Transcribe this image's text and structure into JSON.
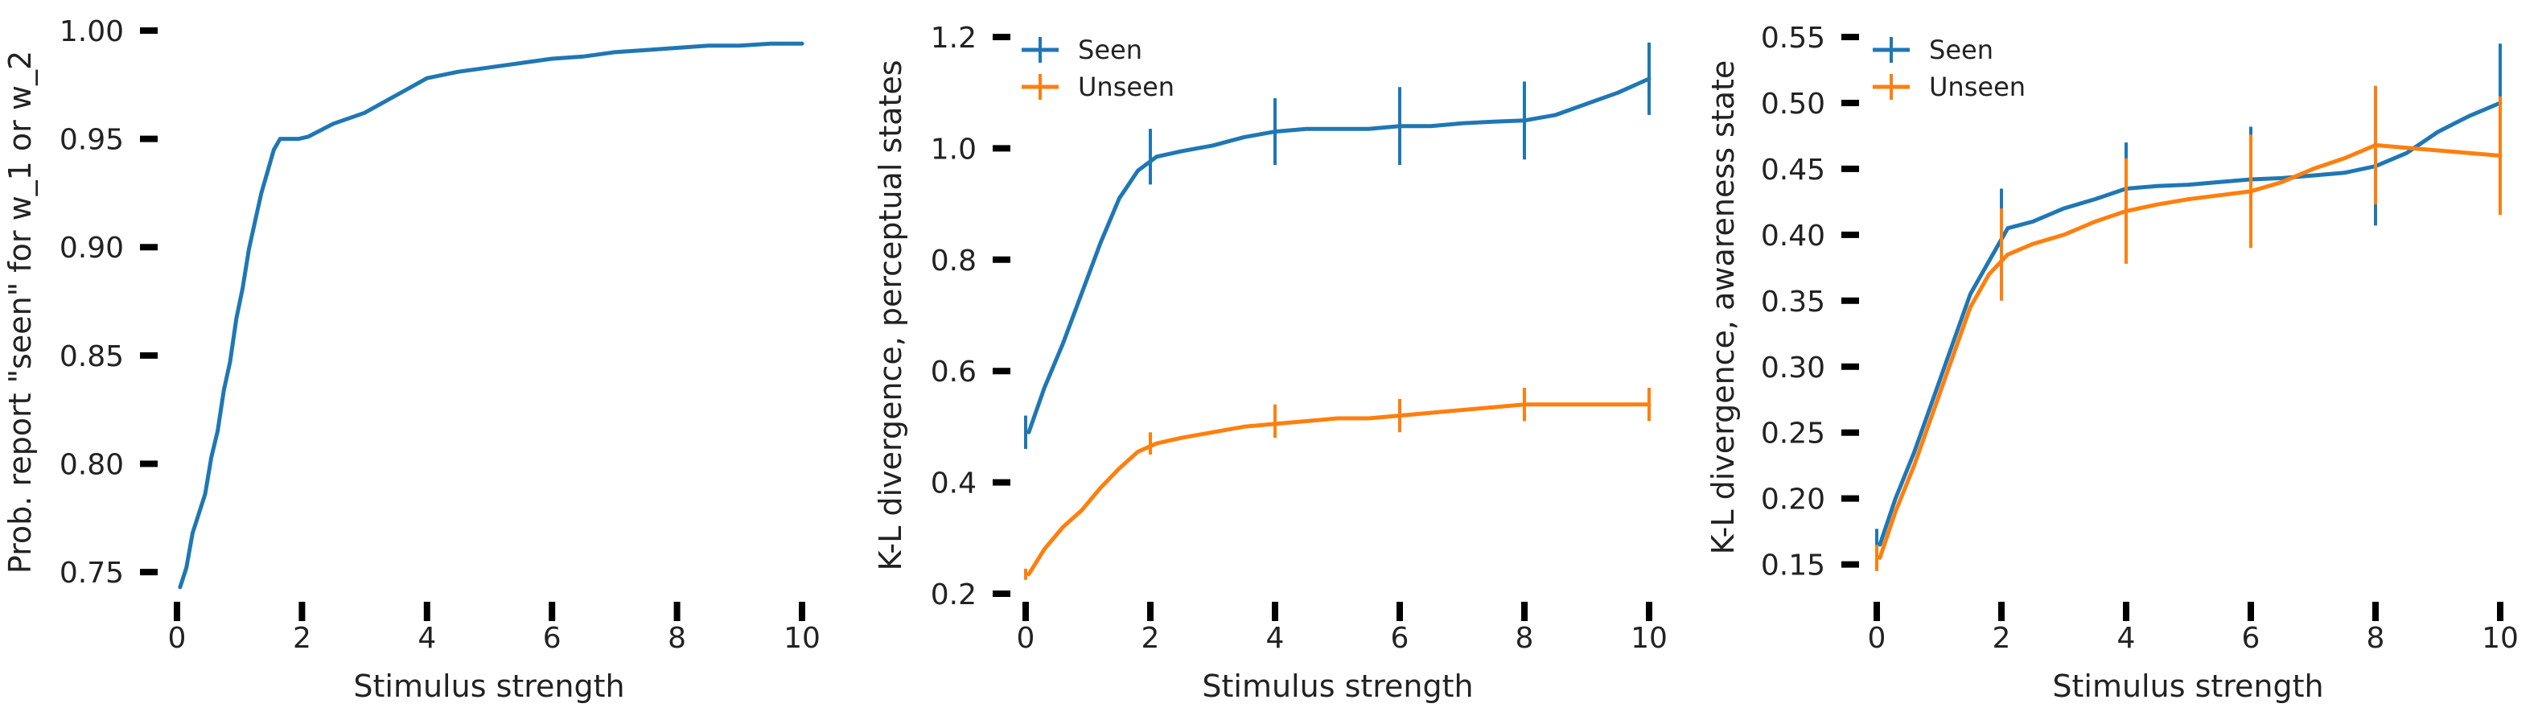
{
  "figure": {
    "colors": {
      "seen": "#1f77b4",
      "unseen": "#ff7f0e"
    }
  },
  "chart_data": [
    {
      "type": "line",
      "title": "",
      "xlabel": "Stimulus strength",
      "ylabel": "Prob. report \"seen\" for w_1 or w_2",
      "xlim": [
        0,
        10
      ],
      "ylim": [
        0.74,
        1.0
      ],
      "xticks": [
        "0",
        "2",
        "4",
        "6",
        "8",
        "10"
      ],
      "yticks": [
        "0.75",
        "0.80",
        "0.85",
        "0.90",
        "0.95",
        "1.00"
      ],
      "grid": false,
      "legend": null,
      "series": [
        {
          "color": "#1f77b4",
          "x": [
            0.05,
            0.15,
            0.25,
            0.35,
            0.45,
            0.55,
            0.65,
            0.75,
            0.85,
            0.95,
            1.05,
            1.15,
            1.25,
            1.35,
            1.45,
            1.55,
            1.65,
            1.75,
            1.85,
            1.95,
            2.1,
            2.5,
            3.0,
            3.5,
            4.0,
            4.5,
            5.0,
            5.5,
            6.0,
            6.5,
            7.0,
            7.5,
            8.0,
            8.5,
            9.0,
            9.5,
            10.0
          ],
          "y": [
            0.743,
            0.752,
            0.768,
            0.777,
            0.786,
            0.803,
            0.815,
            0.834,
            0.847,
            0.867,
            0.881,
            0.899,
            0.912,
            0.925,
            0.935,
            0.945,
            0.95,
            0.95,
            0.95,
            0.95,
            0.951,
            0.957,
            0.962,
            0.97,
            0.978,
            0.981,
            0.983,
            0.985,
            0.987,
            0.988,
            0.99,
            0.991,
            0.992,
            0.993,
            0.993,
            0.994,
            0.994
          ]
        }
      ]
    },
    {
      "type": "line",
      "title": "",
      "xlabel": "Stimulus strength",
      "ylabel": "K-L divergence, perceptual states",
      "xlim": [
        0,
        10
      ],
      "ylim": [
        0.2,
        1.2
      ],
      "xticks": [
        "0",
        "2",
        "4",
        "6",
        "8",
        "10"
      ],
      "yticks": [
        "0.2",
        "0.4",
        "0.6",
        "0.8",
        "1.0",
        "1.2"
      ],
      "grid": false,
      "legend": "top-left",
      "series": [
        {
          "name": "Seen",
          "color": "#1f77b4",
          "x": [
            0.05,
            0.3,
            0.6,
            0.9,
            1.2,
            1.5,
            1.8,
            2.1,
            2.5,
            3.0,
            3.5,
            4.0,
            4.5,
            5.0,
            5.5,
            6.0,
            6.5,
            7.0,
            7.5,
            8.0,
            8.5,
            9.0,
            9.5,
            10.0
          ],
          "y": [
            0.49,
            0.57,
            0.65,
            0.74,
            0.83,
            0.91,
            0.96,
            0.985,
            0.995,
            1.005,
            1.02,
            1.03,
            1.035,
            1.035,
            1.035,
            1.04,
            1.04,
            1.045,
            1.048,
            1.05,
            1.06,
            1.08,
            1.1,
            1.125
          ],
          "errorbars": {
            "x": [
              0,
              2,
              4,
              6,
              8,
              10
            ],
            "y": [
              0.49,
              0.985,
              1.03,
              1.04,
              1.05,
              1.125
            ],
            "err": [
              0.03,
              0.05,
              0.06,
              0.07,
              0.07,
              0.065
            ]
          }
        },
        {
          "name": "Unseen",
          "color": "#ff7f0e",
          "x": [
            0.05,
            0.3,
            0.6,
            0.9,
            1.2,
            1.5,
            1.8,
            2.1,
            2.5,
            3.0,
            3.5,
            4.0,
            4.5,
            5.0,
            5.5,
            6.0,
            6.5,
            7.0,
            7.5,
            8.0,
            8.5,
            9.0,
            9.5,
            10.0
          ],
          "y": [
            0.235,
            0.28,
            0.32,
            0.35,
            0.39,
            0.425,
            0.455,
            0.47,
            0.48,
            0.49,
            0.5,
            0.505,
            0.51,
            0.515,
            0.515,
            0.52,
            0.525,
            0.53,
            0.535,
            0.54,
            0.54,
            0.54,
            0.54,
            0.54
          ],
          "errorbars": {
            "x": [
              0,
              2,
              4,
              6,
              8,
              10
            ],
            "y": [
              0.235,
              0.47,
              0.51,
              0.52,
              0.54,
              0.54
            ],
            "err": [
              0.01,
              0.02,
              0.03,
              0.03,
              0.03,
              0.03
            ]
          }
        }
      ]
    },
    {
      "type": "line",
      "title": "",
      "xlabel": "Stimulus strength",
      "ylabel": "K-L divergence, awareness state",
      "xlim": [
        0,
        10
      ],
      "ylim": [
        0.14,
        0.55
      ],
      "xticks": [
        "0",
        "2",
        "4",
        "6",
        "8",
        "10"
      ],
      "yticks": [
        "0.15",
        "0.20",
        "0.25",
        "0.30",
        "0.35",
        "0.40",
        "0.45",
        "0.50",
        "0.55"
      ],
      "grid": false,
      "legend": "top-left",
      "series": [
        {
          "name": "Seen",
          "color": "#1f77b4",
          "x": [
            0.05,
            0.3,
            0.6,
            0.9,
            1.2,
            1.5,
            1.8,
            2.1,
            2.5,
            3.0,
            3.5,
            4.0,
            4.5,
            5.0,
            5.5,
            6.0,
            6.5,
            7.0,
            7.5,
            8.0,
            8.5,
            9.0,
            9.5,
            10.0
          ],
          "y": [
            0.165,
            0.2,
            0.235,
            0.275,
            0.315,
            0.355,
            0.38,
            0.405,
            0.41,
            0.42,
            0.427,
            0.435,
            0.437,
            0.438,
            0.44,
            0.442,
            0.443,
            0.445,
            0.447,
            0.452,
            0.462,
            0.478,
            0.49,
            0.5
          ],
          "errorbars": {
            "x": [
              0,
              2,
              4,
              6,
              8,
              10
            ],
            "y": [
              0.165,
              0.405,
              0.435,
              0.442,
              0.452,
              0.5
            ],
            "err": [
              0.012,
              0.03,
              0.035,
              0.04,
              0.045,
              0.045
            ]
          }
        },
        {
          "name": "Unseen",
          "color": "#ff7f0e",
          "x": [
            0.05,
            0.3,
            0.6,
            0.9,
            1.2,
            1.5,
            1.8,
            2.1,
            2.5,
            3.0,
            3.5,
            4.0,
            4.5,
            5.0,
            5.5,
            6.0,
            6.5,
            7.0,
            7.5,
            8.0,
            8.5,
            9.0,
            9.5,
            10.0
          ],
          "y": [
            0.155,
            0.19,
            0.225,
            0.265,
            0.305,
            0.345,
            0.37,
            0.385,
            0.393,
            0.4,
            0.41,
            0.418,
            0.423,
            0.427,
            0.43,
            0.433,
            0.44,
            0.45,
            0.458,
            0.468,
            0.466,
            0.464,
            0.462,
            0.46
          ],
          "errorbars": {
            "x": [
              0,
              2,
              4,
              6,
              8,
              10
            ],
            "y": [
              0.155,
              0.385,
              0.418,
              0.433,
              0.468,
              0.46
            ],
            "err": [
              0.01,
              0.035,
              0.04,
              0.043,
              0.045,
              0.045
            ]
          }
        }
      ]
    }
  ]
}
